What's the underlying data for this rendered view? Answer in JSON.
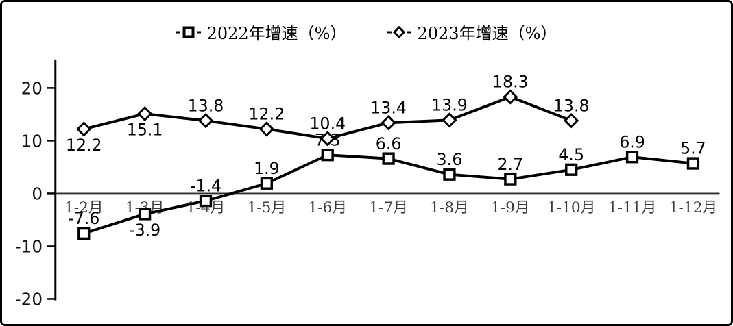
{
  "legend": {
    "items": [
      {
        "label": "2022年增速（%）",
        "marker": "square"
      },
      {
        "label": "2023年增速（%）",
        "marker": "diamond"
      }
    ]
  },
  "chart_data": {
    "type": "line",
    "title": "",
    "categories": [
      "1-2月",
      "1-3月",
      "1-4月",
      "1-5月",
      "1-6月",
      "1-7月",
      "1-8月",
      "1-9月",
      "1-10月",
      "1-11月",
      "1-12月"
    ],
    "series": [
      {
        "id": "2022",
        "name": "2022年增速（%）",
        "marker": "square",
        "values": [
          -7.6,
          -3.9,
          -1.4,
          1.9,
          7.3,
          6.6,
          3.6,
          2.7,
          4.5,
          6.9,
          5.7
        ],
        "label_pos": [
          "above",
          "below",
          "above",
          "above",
          "above",
          "above",
          "above",
          "above",
          "above",
          "above",
          "above"
        ]
      },
      {
        "id": "2023",
        "name": "2023年增速（%）",
        "marker": "diamond",
        "values": [
          12.2,
          15.1,
          13.8,
          12.2,
          10.4,
          13.4,
          13.9,
          18.3,
          13.8
        ],
        "label_pos": [
          "below",
          "below",
          "above",
          "above",
          "above",
          "above",
          "above",
          "above",
          "above"
        ]
      }
    ],
    "ylim": [
      -20,
      25
    ],
    "yticks": [
      -20,
      -10,
      0,
      10,
      20
    ],
    "grid": false,
    "legend_position": "top-center",
    "colors": {
      "line": "#000000",
      "marker_fill": "#ffffff",
      "axis": "#000000",
      "xlabel_color": "#3d3d3d",
      "background": "#ffffff"
    }
  }
}
